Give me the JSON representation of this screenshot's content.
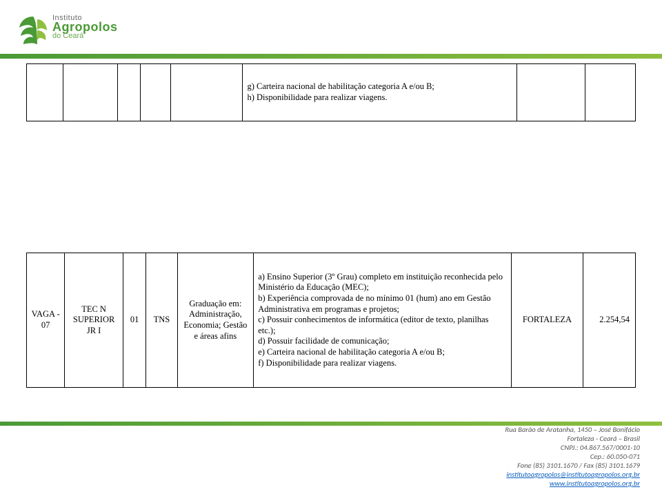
{
  "logo": {
    "line1": "Instituto",
    "line2": "Agropolos",
    "line3": "do Ceará"
  },
  "table1": {
    "requisitos": "g) Carteira nacional de habilitação categoria A e/ou B;\nh) Disponibilidade para realizar viagens."
  },
  "table2": {
    "vaga": "VAGA - 07",
    "cargo": "TEC N SUPERIOR JR I",
    "qtd": "01",
    "tipo": "TNS",
    "graduacao": "Graduação em: Administração, Economia; Gestão e áreas afins",
    "requisitos": "a) Ensino Superior (3º Grau) completo em instituição reconhecida pelo Ministério da Educação (MEC);\nb) Experiência comprovada de no mínimo 01 (hum) ano em Gestão Administrativa em programas e projetos;\nc) Possuir conhecimentos de informática (editor de texto, planilhas etc.);\nd) Possuir facilidade de comunicação;\ne) Carteira nacional de habilitação categoria A e/ou B;\nf) Disponibilidade para realizar viagens.",
    "local": "FORTALEZA",
    "salario": "2.254,54"
  },
  "footer": {
    "l1": "Rua Barão de Aratanha, 1450 – José Bonifácio",
    "l2": "Fortaleza - Ceará – Brasil",
    "l3": "CNPJ.: 04.867.567/0001-10",
    "l4": "Cep.: 60.050-071",
    "l5": "Fone (85) 3101.1670 / Fax (85) 3101.1679",
    "email": "institutoagropolos@institutoagropolos.org.br",
    "site": "www.institutoagropolos.org.br"
  }
}
